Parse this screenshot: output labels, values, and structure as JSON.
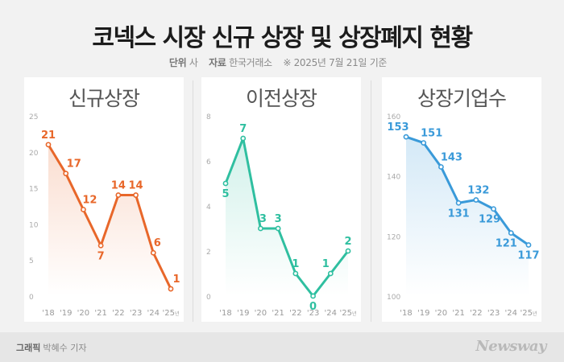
{
  "header": {
    "title": "코넥스 시장 신규 상장 및 상장폐지 현황",
    "unit_label": "단위",
    "unit_value": "사",
    "source_label": "자료",
    "source_value": "한국거래소",
    "note": "※ 2025년 7월 21일 기준"
  },
  "footer": {
    "credit_label": "그래픽",
    "credit_value": "박혜수 기자",
    "logo": "Newsway"
  },
  "chart_data": [
    {
      "type": "line",
      "title": "신규상장",
      "categories": [
        "'18",
        "'19",
        "'20",
        "'21",
        "'22",
        "'23",
        "'24",
        "'25"
      ],
      "year_suffix": "년",
      "values": [
        21,
        17,
        12,
        7,
        14,
        14,
        6,
        1
      ],
      "ylim": [
        0,
        25
      ],
      "yticks": [
        0,
        5,
        10,
        15,
        20,
        25
      ],
      "color": "#e8672a",
      "grid": false
    },
    {
      "type": "line",
      "title": "이전상장",
      "categories": [
        "'18",
        "'19",
        "'20",
        "'21",
        "'22",
        "'23",
        "'24",
        "'25"
      ],
      "year_suffix": "년",
      "values": [
        5,
        7,
        3,
        3,
        1,
        0,
        1,
        2
      ],
      "ylim": [
        0,
        8
      ],
      "yticks": [
        0,
        2,
        4,
        6,
        8
      ],
      "color": "#2fbfa0",
      "grid": false
    },
    {
      "type": "line",
      "title": "상장기업수",
      "categories": [
        "'18",
        "'19",
        "'20",
        "'21",
        "'22",
        "'23",
        "'24",
        "'25"
      ],
      "year_suffix": "년",
      "values": [
        153,
        151,
        143,
        131,
        132,
        129,
        121,
        117
      ],
      "ylim": [
        100,
        160
      ],
      "yticks": [
        100,
        120,
        140,
        160
      ],
      "color": "#3a9ad9",
      "grid": false
    }
  ]
}
